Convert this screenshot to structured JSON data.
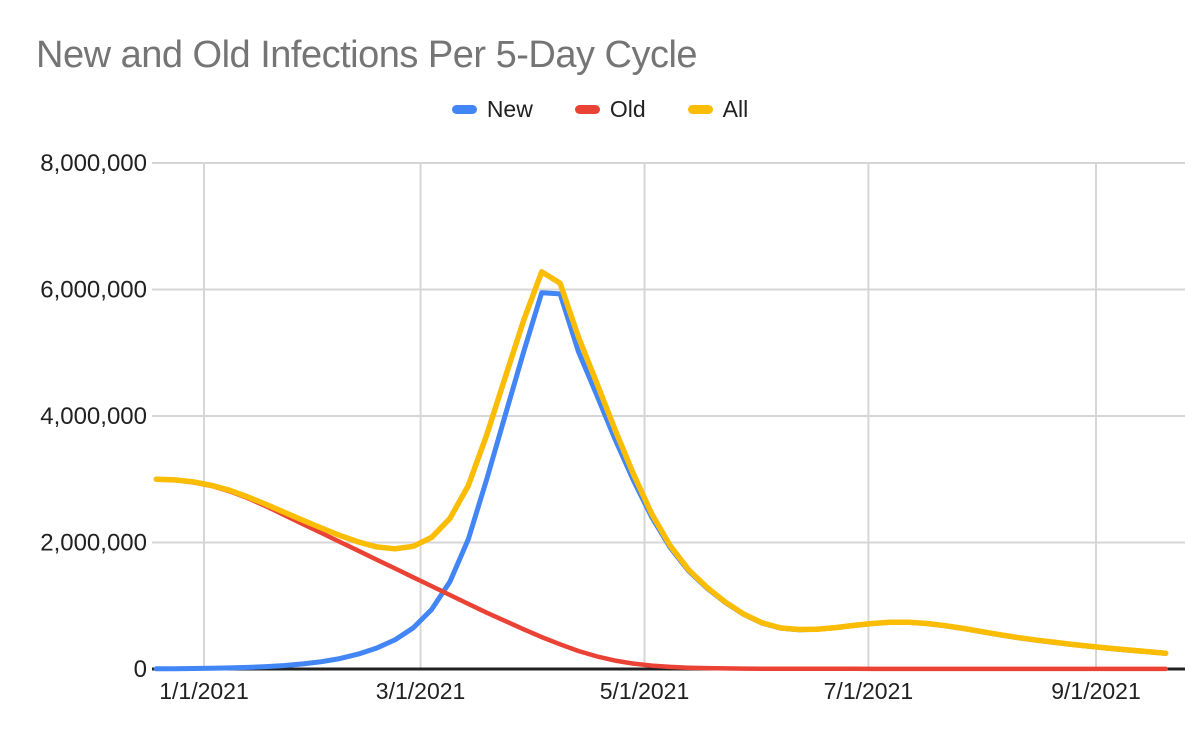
{
  "title": "New and Old Infections Per 5-Day Cycle",
  "legend": {
    "items": [
      {
        "label": "New",
        "color": "#4285F4"
      },
      {
        "label": "Old",
        "color": "#EA4335"
      },
      {
        "label": "All",
        "color": "#FBBC04"
      }
    ]
  },
  "colors": {
    "background": "#ffffff",
    "title_text": "#757575",
    "tick_text": "#212121",
    "gridline": "#d6d6d6",
    "axis_line": "#212121",
    "series_new": "#4285F4",
    "series_old": "#EA4335",
    "series_all": "#FBBC04"
  },
  "chart_data": {
    "type": "line",
    "title": "New and Old Infections Per 5-Day Cycle",
    "xlabel": "",
    "ylabel": "",
    "grid": true,
    "legend_position": "top",
    "ylim": [
      0,
      8000000
    ],
    "y_ticks": [
      {
        "value": 0,
        "label": "0"
      },
      {
        "value": 2000000,
        "label": "2,000,000"
      },
      {
        "value": 4000000,
        "label": "4,000,000"
      },
      {
        "value": 6000000,
        "label": "6,000,000"
      },
      {
        "value": 8000000,
        "label": "8,000,000"
      }
    ],
    "x_ticks": [
      {
        "date": "1/1/2021",
        "label": "1/1/2021"
      },
      {
        "date": "3/1/2021",
        "label": "3/1/2021"
      },
      {
        "date": "5/1/2021",
        "label": "5/1/2021"
      },
      {
        "date": "7/1/2021",
        "label": "7/1/2021"
      },
      {
        "date": "9/1/2021",
        "label": "9/1/2021"
      }
    ],
    "x": [
      "12/19/2020",
      "12/24/2020",
      "12/29/2020",
      "1/3/2021",
      "1/8/2021",
      "1/13/2021",
      "1/18/2021",
      "1/23/2021",
      "1/28/2021",
      "2/2/2021",
      "2/7/2021",
      "2/12/2021",
      "2/17/2021",
      "2/22/2021",
      "2/27/2021",
      "3/4/2021",
      "3/9/2021",
      "3/14/2021",
      "3/19/2021",
      "3/24/2021",
      "3/29/2021",
      "4/3/2021",
      "4/8/2021",
      "4/13/2021",
      "4/18/2021",
      "4/23/2021",
      "4/28/2021",
      "5/3/2021",
      "5/8/2021",
      "5/13/2021",
      "5/18/2021",
      "5/23/2021",
      "5/28/2021",
      "6/2/2021",
      "6/7/2021",
      "6/12/2021",
      "6/17/2021",
      "6/22/2021",
      "6/27/2021",
      "7/2/2021",
      "7/7/2021",
      "7/12/2021",
      "7/17/2021",
      "7/22/2021",
      "7/27/2021",
      "8/1/2021",
      "8/6/2021",
      "8/11/2021",
      "8/16/2021",
      "8/21/2021",
      "8/26/2021",
      "8/31/2021",
      "9/5/2021",
      "9/10/2021",
      "9/15/2021",
      "9/20/2021"
    ],
    "series": [
      {
        "name": "New",
        "color": "#4285F4",
        "stroke_width": 5,
        "values": [
          3000,
          5000,
          8000,
          12000,
          18000,
          26000,
          38000,
          55000,
          80000,
          115000,
          165000,
          235000,
          330000,
          460000,
          650000,
          940000,
          1380000,
          2050000,
          3000000,
          4000000,
          5000000,
          5950000,
          5930000,
          5020000,
          4330000,
          3630000,
          2980000,
          2400000,
          1920000,
          1553000,
          1278000,
          1052000,
          864000,
          726000,
          647000,
          622000,
          627000,
          652000,
          687000,
          717000,
          737000,
          737000,
          717000,
          682000,
          637000,
          587000,
          537000,
          492000,
          452000,
          417000,
          382000,
          352000,
          322000,
          297000,
          272000,
          247000
        ]
      },
      {
        "name": "Old",
        "color": "#EA4335",
        "stroke_width": 4.5,
        "values": [
          3000000,
          2985000,
          2950000,
          2895000,
          2810000,
          2700000,
          2570000,
          2430000,
          2290000,
          2150000,
          2010000,
          1870000,
          1730000,
          1590000,
          1450000,
          1310000,
          1170000,
          1030000,
          890000,
          760000,
          630000,
          505000,
          390000,
          285000,
          200000,
          133000,
          85000,
          53000,
          33000,
          21000,
          14000,
          10000,
          7000,
          5000,
          4000,
          4000,
          3000,
          3000,
          3000,
          2000,
          2000,
          2000,
          2000,
          2000,
          2000,
          1000,
          1000,
          1000,
          1000,
          1000,
          1000,
          1000,
          1000,
          1000,
          1000,
          1000
        ]
      },
      {
        "name": "All",
        "color": "#FBBC04",
        "stroke_width": 5.5,
        "values": [
          3000000,
          2990000,
          2960000,
          2905000,
          2825000,
          2720000,
          2600000,
          2475000,
          2350000,
          2230000,
          2110000,
          2010000,
          1930000,
          1900000,
          1940000,
          2080000,
          2380000,
          2900000,
          3700000,
          4600000,
          5500000,
          6280000,
          6100000,
          5250000,
          4520000,
          3780000,
          3080000,
          2450000,
          1950000,
          1570000,
          1290000,
          1060000,
          870000,
          730000,
          650000,
          625000,
          630000,
          655000,
          690000,
          720000,
          740000,
          740000,
          720000,
          685000,
          640000,
          590000,
          540000,
          495000,
          455000,
          420000,
          385000,
          355000,
          325000,
          300000,
          275000,
          250000
        ]
      }
    ]
  }
}
